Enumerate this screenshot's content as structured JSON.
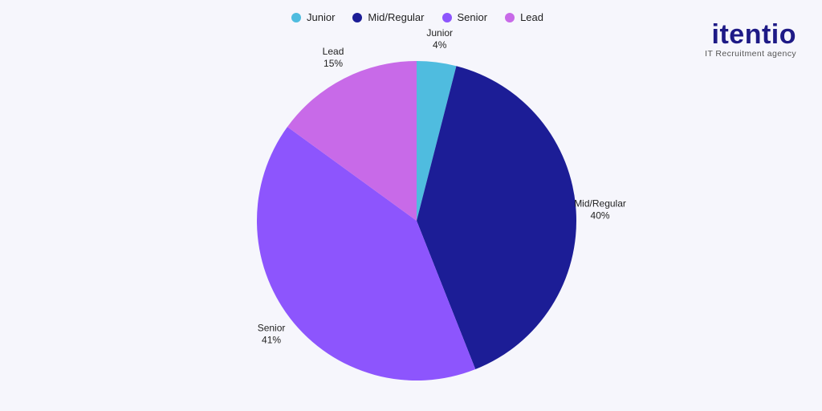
{
  "logo": {
    "name": "itentio",
    "tagline": "IT Recruitment agency"
  },
  "chart_data": {
    "type": "pie",
    "title": "",
    "legend_position": "top",
    "slices": [
      {
        "label": "Junior",
        "value": 4,
        "value_label": "4%",
        "color": "#4fbcdf"
      },
      {
        "label": "Mid/Regular",
        "value": 40,
        "value_label": "40%",
        "color": "#1c1d96"
      },
      {
        "label": "Senior",
        "value": 41,
        "value_label": "41%",
        "color": "#8d55fd"
      },
      {
        "label": "Lead",
        "value": 15,
        "value_label": "15%",
        "color": "#c86ae8"
      }
    ]
  }
}
